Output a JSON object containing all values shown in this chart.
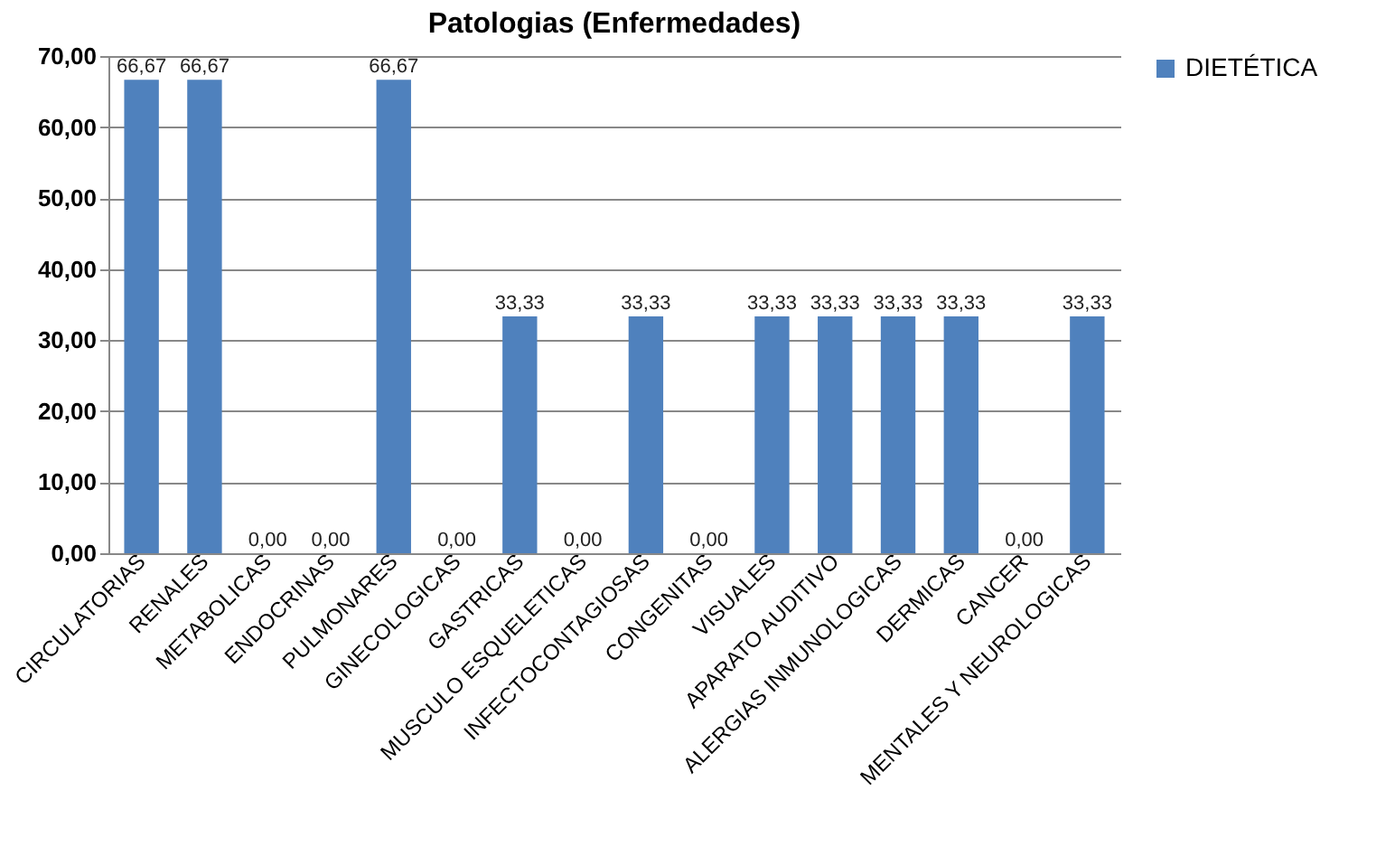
{
  "chart_data": {
    "type": "bar",
    "title": "Patologias (Enfermedades)",
    "categories": [
      "CIRCULATORIAS",
      "RENALES",
      "METABOLICAS",
      "ENDOCRINAS",
      "PULMONARES",
      "GINECOLOGICAS",
      "GASTRICAS",
      "MUSCULO ESQUELETICAS",
      "INFECTOCONTAGIOSAS",
      "CONGENITAS",
      "VISUALES",
      "APARATO AUDITIVO",
      "ALERGIAS INMUNOLOGICAS",
      "DERMICAS",
      "CANCER",
      "MENTALES Y NEUROLOGICAS"
    ],
    "series": [
      {
        "name": "DIETÉTICA",
        "color": "#4f81bd",
        "values": [
          66.67,
          66.67,
          0,
          0,
          66.67,
          0,
          33.33,
          0,
          33.33,
          0,
          33.33,
          33.33,
          33.33,
          33.33,
          0,
          33.33
        ],
        "value_labels": [
          "66,67",
          "66,67",
          "0,00",
          "0,00",
          "66,67",
          "0,00",
          "33,33",
          "0,00",
          "33,33",
          "0,00",
          "33,33",
          "33,33",
          "33,33",
          "33,33",
          "0,00",
          "33,33"
        ]
      }
    ],
    "ylim": [
      0,
      70
    ],
    "yticks": [
      {
        "value": 0,
        "label": "0,00"
      },
      {
        "value": 10,
        "label": "10,00"
      },
      {
        "value": 20,
        "label": "20,00"
      },
      {
        "value": 30,
        "label": "30,00"
      },
      {
        "value": 40,
        "label": "40,00"
      },
      {
        "value": 50,
        "label": "50,00"
      },
      {
        "value": 60,
        "label": "60,00"
      },
      {
        "value": 70,
        "label": "70,00"
      }
    ],
    "grid": "y",
    "legend": "right"
  }
}
